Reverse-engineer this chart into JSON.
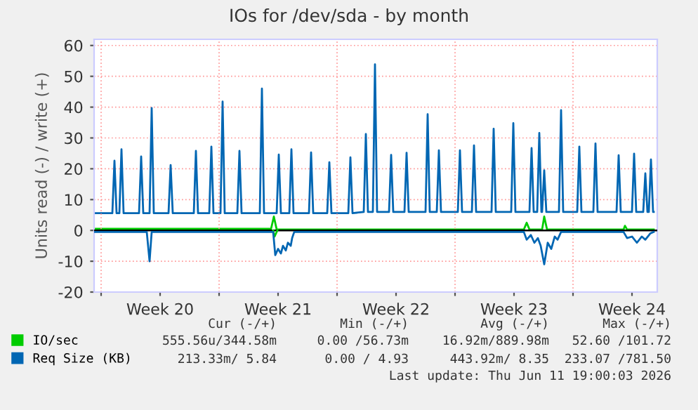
{
  "chart_data": {
    "type": "line",
    "title": "IOs for /dev/sda - by month",
    "ylabel": "Units read (-) / write (+)",
    "xlim": [
      "2026-05-09T14:00",
      "2026-06-12T00:00"
    ],
    "ylim": [
      -20,
      62
    ],
    "xticks": [
      {
        "value": "2026-05-10T00:00",
        "label": null
      },
      {
        "value": "2026-05-13T12:00",
        "label": "Week 20"
      },
      {
        "value": "2026-05-17T00:00",
        "label": null
      },
      {
        "value": "2026-05-20T12:00",
        "label": "Week 21"
      },
      {
        "value": "2026-05-24T00:00",
        "label": null
      },
      {
        "value": "2026-05-27T12:00",
        "label": "Week 22"
      },
      {
        "value": "2026-05-31T00:00",
        "label": null
      },
      {
        "value": "2026-06-03T12:00",
        "label": "Week 23"
      },
      {
        "value": "2026-06-07T00:00",
        "label": null
      },
      {
        "value": "2026-06-10T12:00",
        "label": "Week 24"
      }
    ],
    "yticks": [
      -20,
      -10,
      0,
      10,
      20,
      30,
      40,
      50,
      60
    ],
    "grid": true,
    "legend": "bottom left",
    "marker": "none",
    "line_style": "solid",
    "ref_lines": [
      {
        "axis": "y",
        "value": 0,
        "color": "#000000"
      }
    ],
    "series": [
      {
        "name": "IO/sec",
        "color": "#00cc00",
        "x": [
          "2026-05-20T05:00",
          "2026-05-20T07:00",
          "2026-05-20T11:00"
        ],
        "values": [
          0,
          -2,
          0
        ]
      },
      {
        "color": "#00cc00",
        "x": [
          "2026-05-09T14:00",
          "2026-05-20T02:00",
          "2026-05-20T06:00",
          "2026-05-20T10:00",
          "2026-06-04T02:00",
          "2026-06-04T06:00",
          "2026-06-04T10:00",
          "2026-06-05T04:00",
          "2026-06-05T07:00",
          "2026-06-05T11:00",
          "2026-06-10T00:00",
          "2026-06-10T02:00",
          "2026-06-10T05:00",
          "2026-06-11T19:00"
        ],
        "values": [
          0.5,
          0.5,
          4.5,
          0.3,
          0.3,
          2.5,
          0.3,
          0.3,
          4.5,
          0.3,
          0.3,
          1.5,
          0.3,
          0.3
        ]
      },
      {
        "name": "Req Size (KB)",
        "color": "#0066b3",
        "x": [
          "2026-05-09T14:00",
          "2026-05-12T17:00",
          "2026-05-12T21:00",
          "2026-05-13T00:00",
          "2026-05-20T05:00",
          "2026-05-20T08:00",
          "2026-05-20T12:00",
          "2026-05-20T16:00",
          "2026-05-20T19:00",
          "2026-05-20T23:00",
          "2026-05-21T02:00",
          "2026-05-21T06:00",
          "2026-05-21T08:00",
          "2026-05-21T11:00",
          "2026-06-04T02:00",
          "2026-06-04T06:00",
          "2026-06-04T12:00",
          "2026-06-04T17:00",
          "2026-06-04T22:00",
          "2026-06-05T02:00",
          "2026-06-05T07:00",
          "2026-06-05T12:00",
          "2026-06-05T17:00",
          "2026-06-05T22:00",
          "2026-06-06T02:00",
          "2026-06-06T07:00",
          "2026-06-10T00:00",
          "2026-06-10T05:00",
          "2026-06-10T12:00",
          "2026-06-10T19:00",
          "2026-06-11T02:00",
          "2026-06-11T07:00",
          "2026-06-11T14:00",
          "2026-06-11T19:00"
        ],
        "values": [
          -0.5,
          -0.5,
          -10,
          -0.5,
          -0.5,
          -8,
          -6,
          -7.5,
          -5,
          -6.5,
          -4,
          -5,
          -2.5,
          -0.5,
          -0.5,
          -3,
          -1.5,
          -4,
          -2.5,
          -5,
          -11,
          -4,
          -6,
          -2,
          -3,
          -0.5,
          -0.5,
          -2.5,
          -2,
          -4,
          -2,
          -3,
          -1,
          -0.5
        ]
      },
      {
        "color": "#0066b3",
        "x": [
          "2026-05-09T14:00",
          "2026-05-10T16:00",
          "2026-05-10T19:00",
          "2026-05-10T22:00",
          "2026-05-11T02:00",
          "2026-05-11T05:00",
          "2026-05-11T08:00",
          "2026-05-12T06:00",
          "2026-05-12T09:00",
          "2026-05-12T12:00",
          "2026-05-12T21:00",
          "2026-05-13T00:00",
          "2026-05-13T03:00",
          "2026-05-14T00:00",
          "2026-05-14T03:00",
          "2026-05-14T06:00",
          "2026-05-15T12:00",
          "2026-05-15T15:00",
          "2026-05-15T18:00",
          "2026-05-16T10:00",
          "2026-05-16T13:00",
          "2026-05-16T16:00",
          "2026-05-17T02:00",
          "2026-05-17T05:00",
          "2026-05-17T08:00",
          "2026-05-18T02:00",
          "2026-05-18T05:00",
          "2026-05-18T08:00",
          "2026-05-19T10:00",
          "2026-05-19T13:00",
          "2026-05-19T16:00",
          "2026-05-20T10:00",
          "2026-05-20T13:00",
          "2026-05-20T16:00",
          "2026-05-21T04:00",
          "2026-05-21T07:00",
          "2026-05-21T10:00",
          "2026-05-22T08:00",
          "2026-05-22T11:00",
          "2026-05-22T14:00",
          "2026-05-23T10:00",
          "2026-05-23T13:00",
          "2026-05-23T16:00",
          "2026-05-24T16:00",
          "2026-05-24T19:00",
          "2026-05-24T22:00",
          "2026-05-25T14:00",
          "2026-05-25T17:00",
          "2026-05-25T20:00",
          "2026-05-26T03:00",
          "2026-05-26T06:00",
          "2026-05-26T09:00",
          "2026-05-27T02:00",
          "2026-05-27T05:00",
          "2026-05-27T08:00",
          "2026-05-28T00:00",
          "2026-05-28T03:00",
          "2026-05-28T06:00",
          "2026-05-29T06:00",
          "2026-05-29T09:00",
          "2026-05-29T12:00",
          "2026-05-29T22:00",
          "2026-05-30T01:00",
          "2026-05-30T04:00",
          "2026-05-31T04:00",
          "2026-05-31T07:00",
          "2026-05-31T10:00",
          "2026-06-01T00:00",
          "2026-06-01T03:00",
          "2026-06-01T06:00",
          "2026-06-02T04:00",
          "2026-06-02T07:00",
          "2026-06-02T10:00",
          "2026-06-03T08:00",
          "2026-06-03T11:00",
          "2026-06-03T14:00",
          "2026-06-04T10:00",
          "2026-06-04T13:00",
          "2026-06-04T16:00",
          "2026-06-04T21:00",
          "2026-06-05T00:00",
          "2026-06-05T03:00",
          "2026-06-05T04:00",
          "2026-06-05T07:00",
          "2026-06-05T10:00",
          "2026-06-06T04:00",
          "2026-06-06T07:00",
          "2026-06-06T10:00",
          "2026-06-07T06:00",
          "2026-06-07T09:00",
          "2026-06-07T12:00",
          "2026-06-08T05:00",
          "2026-06-08T08:00",
          "2026-06-08T11:00",
          "2026-06-09T14:00",
          "2026-06-09T17:00",
          "2026-06-09T20:00",
          "2026-06-10T12:00",
          "2026-06-10T15:00",
          "2026-06-10T18:00",
          "2026-06-11T04:00",
          "2026-06-11T07:00",
          "2026-06-11T10:00",
          "2026-06-11T12:00",
          "2026-06-11T15:00",
          "2026-06-11T18:00",
          "2026-06-11T19:00"
        ],
        "values": [
          5.6,
          5.6,
          22.6,
          5.6,
          5.6,
          26.3,
          5.6,
          5.6,
          24,
          5.6,
          5.6,
          39.7,
          5.6,
          5.6,
          21.2,
          5.6,
          5.6,
          25.8,
          5.6,
          5.6,
          27.2,
          5.6,
          5.6,
          41.8,
          5.6,
          5.6,
          25.8,
          5.6,
          5.6,
          46,
          5.6,
          5.6,
          24.6,
          5.6,
          5.6,
          26.3,
          5.6,
          5.6,
          25.3,
          5.6,
          5.6,
          22.1,
          5.6,
          5.6,
          23.7,
          5.6,
          6,
          31.3,
          6,
          6,
          53.9,
          6,
          6,
          24.5,
          6,
          6,
          25.2,
          6,
          6,
          37.7,
          6,
          6,
          26,
          6,
          6,
          26,
          6,
          6,
          27.6,
          6,
          6,
          33,
          6,
          6,
          34.8,
          6,
          6,
          26.7,
          6,
          6,
          31.6,
          6,
          6,
          19.5,
          6,
          6,
          39,
          6,
          6,
          27.2,
          6,
          6,
          28.2,
          6,
          6,
          24.4,
          6,
          6,
          24.9,
          6,
          6,
          18.5,
          6,
          6,
          23,
          6,
          6
        ]
      }
    ],
    "annotations": [
      "Cur (-/+)",
      "Min (-/+)",
      "Avg (-/+)",
      "Max (-/+)",
      "555.56u/344.58m",
      "0.00 /56.73m",
      "16.92m/889.98m",
      "52.60 /101.72",
      "213.33m/ 5.84",
      "0.00 / 4.93",
      "443.92m/ 8.35",
      "233.07 /781.50",
      "Last update: Thu Jun 11 19:00:03 2026"
    ]
  }
}
